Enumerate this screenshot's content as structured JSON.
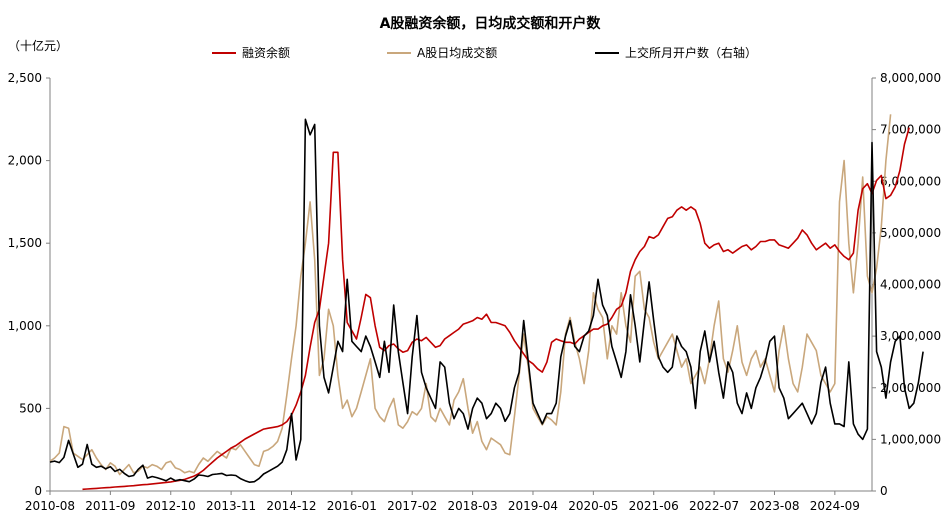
{
  "chart_data": {
    "type": "line",
    "title": "A股融资余额，日均成交额和开户数",
    "y_left_unit": "（十亿元）",
    "ylim_left": [
      0,
      2500
    ],
    "yticks_left": [
      0,
      500,
      1000,
      1500,
      2000,
      2500
    ],
    "yticks_left_labels": [
      "0",
      "500",
      "1,000",
      "1,500",
      "2,000",
      "2,500"
    ],
    "ylim_right": [
      0,
      8000000
    ],
    "yticks_right": [
      0,
      1000000,
      2000000,
      3000000,
      4000000,
      5000000,
      6000000,
      7000000,
      8000000
    ],
    "yticks_right_labels": [
      "0",
      "1,000,000",
      "2,000,000",
      "3,000,000",
      "4,000,000",
      "5,000,000",
      "6,000,000",
      "7,000,000",
      "8,000,000"
    ],
    "x_start": "2010-08",
    "x_end": "2025-05",
    "xticks": [
      "2010-08",
      "2011-09",
      "2012-10",
      "2013-11",
      "2014-12",
      "2016-01",
      "2017-02",
      "2018-03",
      "2019-04",
      "2020-05",
      "2021-06",
      "2022-07",
      "2023-08",
      "2024-09"
    ],
    "grid": false,
    "legend_position": "top",
    "series": [
      {
        "name": "融资余额",
        "color": "#C00000",
        "axis": "left",
        "start": "2011-03",
        "values": [
          10,
          12,
          14,
          16,
          18,
          20,
          22,
          24,
          26,
          28,
          30,
          32,
          35,
          38,
          40,
          43,
          46,
          49,
          52,
          55,
          60,
          65,
          70,
          80,
          90,
          105,
          125,
          150,
          175,
          200,
          220,
          240,
          260,
          275,
          295,
          315,
          330,
          345,
          360,
          375,
          380,
          385,
          390,
          400,
          420,
          460,
          520,
          600,
          700,
          870,
          1020,
          1100,
          1300,
          1500,
          2050,
          2050,
          1400,
          1020,
          970,
          920,
          1050,
          1190,
          1170,
          1000,
          870,
          850,
          880,
          890,
          860,
          840,
          850,
          900,
          920,
          910,
          930,
          900,
          870,
          880,
          920,
          940,
          960,
          980,
          1010,
          1020,
          1030,
          1050,
          1040,
          1070,
          1020,
          1020,
          1010,
          1000,
          960,
          910,
          870,
          830,
          790,
          770,
          740,
          720,
          780,
          900,
          920,
          910,
          900,
          900,
          890,
          920,
          940,
          960,
          980,
          980,
          1000,
          1010,
          1050,
          1100,
          1120,
          1200,
          1330,
          1400,
          1450,
          1480,
          1540,
          1530,
          1550,
          1600,
          1650,
          1660,
          1700,
          1720,
          1700,
          1720,
          1700,
          1620,
          1500,
          1470,
          1490,
          1500,
          1450,
          1460,
          1440,
          1460,
          1480,
          1490,
          1460,
          1480,
          1510,
          1510,
          1520,
          1520,
          1490,
          1480,
          1470,
          1500,
          1530,
          1580,
          1550,
          1500,
          1460,
          1480,
          1500,
          1470,
          1490,
          1450,
          1420,
          1400,
          1440,
          1700,
          1830,
          1860,
          1800,
          1880,
          1910,
          1770,
          1790,
          1840,
          1940,
          2100,
          2200
        ]
      },
      {
        "name": "A股日均成交额",
        "color": "#C9A77C",
        "axis": "left",
        "start": "2010-08",
        "values": [
          180,
          200,
          230,
          390,
          380,
          230,
          210,
          190,
          220,
          250,
          200,
          160,
          130,
          170,
          150,
          100,
          130,
          160,
          110,
          120,
          150,
          140,
          160,
          150,
          130,
          170,
          180,
          140,
          130,
          110,
          120,
          110,
          160,
          200,
          180,
          210,
          240,
          220,
          200,
          260,
          250,
          280,
          240,
          200,
          160,
          150,
          240,
          250,
          270,
          300,
          380,
          580,
          800,
          1000,
          1300,
          1500,
          1750,
          1400,
          700,
          800,
          1100,
          1000,
          700,
          500,
          550,
          450,
          500,
          600,
          700,
          800,
          500,
          450,
          420,
          500,
          560,
          400,
          380,
          420,
          480,
          460,
          500,
          650,
          450,
          420,
          500,
          450,
          400,
          550,
          600,
          680,
          500,
          350,
          420,
          300,
          250,
          320,
          300,
          280,
          230,
          220,
          450,
          700,
          950,
          750,
          500,
          450,
          400,
          450,
          430,
          400,
          600,
          950,
          1050,
          900,
          800,
          650,
          850,
          1200,
          1100,
          1050,
          800,
          1000,
          950,
          1200,
          1000,
          900,
          1300,
          1330,
          1100,
          1050,
          900,
          800,
          850,
          900,
          950,
          850,
          750,
          800,
          650,
          700,
          750,
          650,
          800,
          1000,
          1150,
          800,
          720,
          850,
          1000,
          780,
          700,
          800,
          850,
          750,
          800,
          700,
          600,
          850,
          1000,
          800,
          650,
          600,
          750,
          950,
          900,
          850,
          700,
          650,
          600,
          650,
          1750,
          2000,
          1500,
          1200,
          1500,
          1900,
          1300,
          1200,
          1350,
          1600,
          2000,
          2280
        ]
      },
      {
        "name": "上交所月开户数（右轴）",
        "color": "#000000",
        "axis": "right",
        "start": "2010-08",
        "values": [
          560000,
          580000,
          550000,
          650000,
          980000,
          720000,
          460000,
          520000,
          900000,
          520000,
          460000,
          480000,
          430000,
          470000,
          380000,
          420000,
          340000,
          280000,
          300000,
          420000,
          500000,
          250000,
          280000,
          260000,
          230000,
          200000,
          250000,
          200000,
          220000,
          200000,
          180000,
          230000,
          310000,
          300000,
          280000,
          320000,
          330000,
          340000,
          300000,
          310000,
          300000,
          240000,
          200000,
          170000,
          180000,
          240000,
          330000,
          380000,
          430000,
          480000,
          560000,
          800000,
          1500000,
          600000,
          1000000,
          7200000,
          6900000,
          7100000,
          3200000,
          2200000,
          1900000,
          2400000,
          2900000,
          2700000,
          4100000,
          2900000,
          2800000,
          2700000,
          3000000,
          2800000,
          2500000,
          2200000,
          2900000,
          2300000,
          3600000,
          2700000,
          2100000,
          1500000,
          2600000,
          3400000,
          2300000,
          2000000,
          1800000,
          1600000,
          2500000,
          2400000,
          1700000,
          1400000,
          1600000,
          1500000,
          1200000,
          1600000,
          1800000,
          1700000,
          1400000,
          1500000,
          1700000,
          1600000,
          1350000,
          1500000,
          2000000,
          2300000,
          3300000,
          2500000,
          1700000,
          1500000,
          1300000,
          1500000,
          1500000,
          1700000,
          2600000,
          3000000,
          3300000,
          2800000,
          2700000,
          3000000,
          3100000,
          3400000,
          4100000,
          3600000,
          3400000,
          2800000,
          2500000,
          2200000,
          2700000,
          3800000,
          3200000,
          2500000,
          3300000,
          4050000,
          3300000,
          2600000,
          2400000,
          2300000,
          2400000,
          3000000,
          2800000,
          2700000,
          2400000,
          1600000,
          2700000,
          3100000,
          2500000,
          2900000,
          2300000,
          1800000,
          2500000,
          2300000,
          1700000,
          1500000,
          1900000,
          1600000,
          2000000,
          2200000,
          2500000,
          2900000,
          3000000,
          2000000,
          1800000,
          1400000,
          1500000,
          1600000,
          1700000,
          1500000,
          1300000,
          1500000,
          2100000,
          2400000,
          1700000,
          1300000,
          1300000,
          1250000,
          2500000,
          1300000,
          1100000,
          1000000,
          1200000,
          6750000,
          2700000,
          2400000,
          1800000,
          2500000,
          2900000,
          3000000,
          2000000,
          1600000,
          1700000,
          2100000,
          2700000
        ]
      }
    ]
  }
}
